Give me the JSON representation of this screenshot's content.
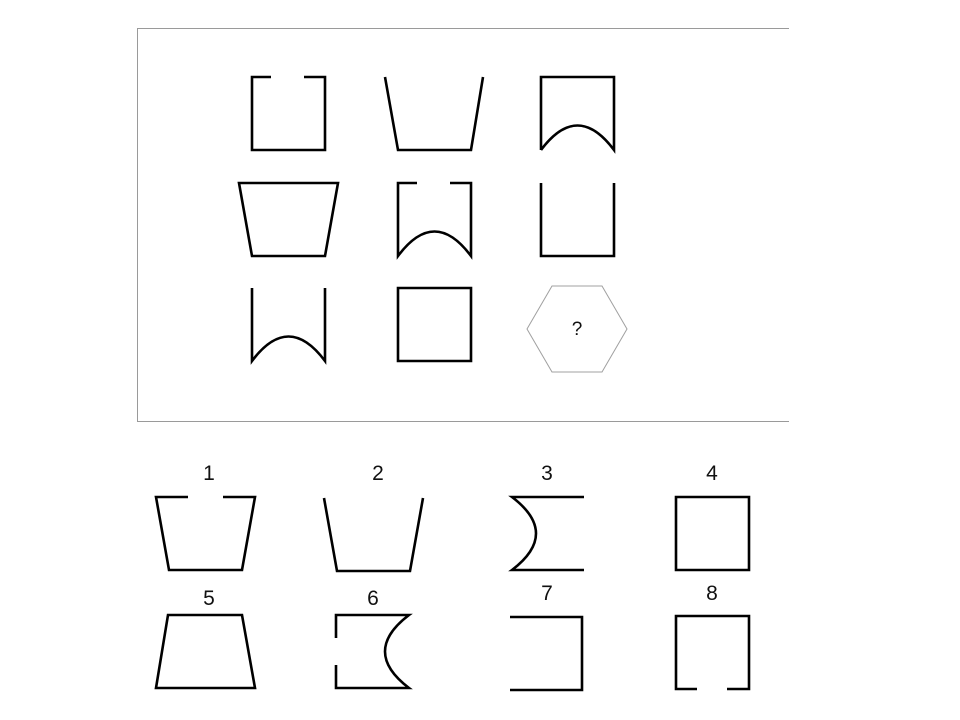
{
  "puzzle": {
    "missing_cell_label": "?"
  },
  "options": [
    {
      "label": "1"
    },
    {
      "label": "2"
    },
    {
      "label": "3"
    },
    {
      "label": "4"
    },
    {
      "label": "5"
    },
    {
      "label": "6"
    },
    {
      "label": "7"
    },
    {
      "label": "8"
    }
  ]
}
